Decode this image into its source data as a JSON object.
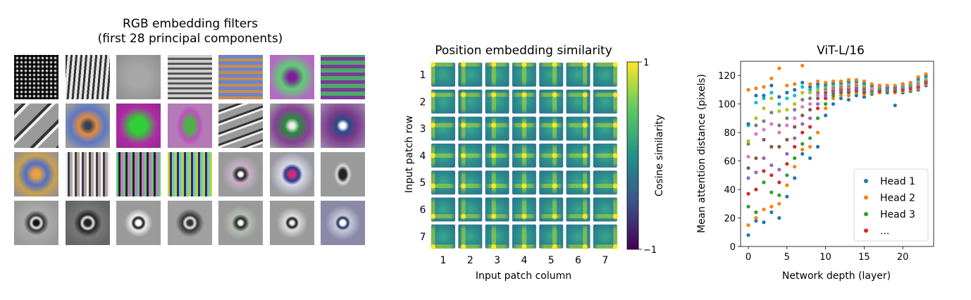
{
  "filters_panel": {
    "title_line1": "RGB embedding filters",
    "title_line2": "(first 28 principal components)",
    "rows": 4,
    "cols": 7
  },
  "chart_data": [
    {
      "type": "heatmap",
      "title": "Position embedding similarity",
      "xlabel": "Input patch column",
      "ylabel": "Input patch row",
      "x_ticks": [
        "1",
        "2",
        "3",
        "4",
        "5",
        "6",
        "7"
      ],
      "y_ticks": [
        "1",
        "2",
        "3",
        "4",
        "5",
        "6",
        "7"
      ],
      "colorbar": {
        "label": "Cosine similarity",
        "min": -1,
        "max": 1,
        "tick_labels": [
          "1",
          "−1"
        ]
      }
    },
    {
      "type": "scatter",
      "title": "ViT-L/16",
      "xlabel": "Network depth (layer)",
      "ylabel": "Mean attention distance (pixels)",
      "xlim": [
        -1,
        24
      ],
      "ylim": [
        0,
        130
      ],
      "x_ticks": [
        0,
        5,
        10,
        15,
        20
      ],
      "y_ticks": [
        0,
        20,
        40,
        60,
        80,
        100,
        120
      ],
      "legend": {
        "placement": "lower-right",
        "entries": [
          "Head 1",
          "Head 2",
          "Head 3",
          "..."
        ]
      },
      "colors": [
        "#1f77b4",
        "#ff7f0e",
        "#2ca02c",
        "#d62728",
        "#9467bd",
        "#8c564b",
        "#e377c2",
        "#7f7f7f",
        "#bcbd22",
        "#17becf"
      ],
      "layers": [
        {
          "x": 0,
          "y": [
            8,
            15,
            28,
            37,
            48,
            55,
            63,
            72,
            74,
            85,
            86,
            110
          ]
        },
        {
          "x": 1,
          "y": [
            18,
            20,
            24,
            40,
            52,
            62,
            79,
            85,
            90,
            101,
            106,
            111
          ]
        },
        {
          "x": 2,
          "y": [
            17,
            26,
            45,
            53,
            62,
            75,
            82,
            88,
            97,
            104,
            106,
            112
          ]
        },
        {
          "x": 3,
          "y": [
            24,
            28,
            38,
            50,
            57,
            70,
            86,
            94,
            104,
            108,
            113,
            118
          ]
        },
        {
          "x": 4,
          "y": [
            20,
            30,
            36,
            45,
            54,
            70,
            80,
            85,
            95,
            100,
            105,
            125
          ]
        },
        {
          "x": 5,
          "y": [
            35,
            43,
            50,
            58,
            65,
            75,
            85,
            90,
            96,
            104,
            108,
            113
          ]
        },
        {
          "x": 6,
          "y": [
            48,
            56,
            62,
            70,
            76,
            84,
            90,
            96,
            100,
            106,
            110,
            114
          ]
        },
        {
          "x": 7,
          "y": [
            65,
            68,
            72,
            80,
            86,
            92,
            98,
            103,
            108,
            112,
            115,
            127
          ]
        },
        {
          "x": 8,
          "y": [
            62,
            70,
            76,
            84,
            90,
            96,
            100,
            104,
            108,
            110,
            112,
            114
          ]
        },
        {
          "x": 9,
          "y": [
            70,
            80,
            90,
            97,
            100,
            104,
            106,
            108,
            110,
            112,
            114,
            116
          ]
        },
        {
          "x": 10,
          "y": [
            92,
            97,
            100,
            104,
            106,
            108,
            110,
            111,
            112,
            113,
            114,
            115
          ]
        },
        {
          "x": 11,
          "y": [
            100,
            104,
            106,
            108,
            109,
            110,
            111,
            112,
            113,
            114,
            115,
            116
          ]
        },
        {
          "x": 12,
          "y": [
            104,
            106,
            108,
            109,
            110,
            111,
            112,
            113,
            114,
            115,
            115,
            116
          ]
        },
        {
          "x": 13,
          "y": [
            103,
            106,
            108,
            109,
            110,
            111,
            112,
            113,
            114,
            115,
            116,
            117
          ]
        },
        {
          "x": 14,
          "y": [
            106,
            108,
            109,
            110,
            111,
            112,
            113,
            114,
            115,
            116,
            116,
            117
          ]
        },
        {
          "x": 15,
          "y": [
            105,
            107,
            108,
            109,
            110,
            111,
            112,
            112,
            113,
            114,
            115,
            116
          ]
        },
        {
          "x": 16,
          "y": [
            107,
            108,
            109,
            110,
            110,
            111,
            111,
            112,
            112,
            113,
            113,
            114
          ]
        },
        {
          "x": 17,
          "y": [
            108,
            108,
            109,
            109,
            110,
            110,
            111,
            111,
            112,
            112,
            113,
            113
          ]
        },
        {
          "x": 18,
          "y": [
            108,
            109,
            109,
            110,
            110,
            111,
            111,
            111,
            112,
            112,
            112,
            113
          ]
        },
        {
          "x": 19,
          "y": [
            99,
            108,
            109,
            109,
            110,
            110,
            111,
            111,
            112,
            112,
            112,
            113
          ]
        },
        {
          "x": 20,
          "y": [
            108,
            109,
            110,
            110,
            111,
            111,
            112,
            112,
            113,
            113,
            114,
            114
          ]
        },
        {
          "x": 21,
          "y": [
            109,
            110,
            111,
            111,
            112,
            112,
            113,
            113,
            114,
            114,
            115,
            115
          ]
        },
        {
          "x": 22,
          "y": [
            110,
            111,
            112,
            112,
            113,
            113,
            114,
            115,
            116,
            117,
            118,
            119
          ]
        },
        {
          "x": 23,
          "y": [
            113,
            114,
            115,
            115,
            116,
            116,
            117,
            117,
            118,
            119,
            120,
            121
          ]
        }
      ]
    }
  ]
}
